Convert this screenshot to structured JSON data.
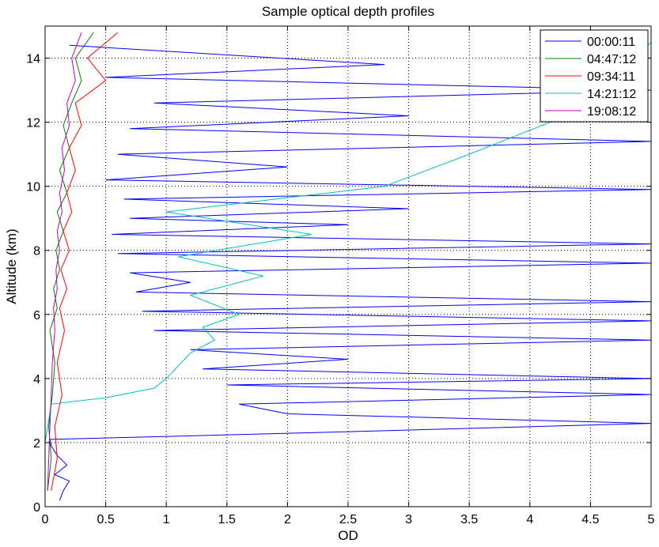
{
  "chart_data": {
    "type": "line",
    "title": "Sample optical depth profiles",
    "xlabel": "OD",
    "ylabel": "Altitude (km)",
    "xlim": [
      0,
      5
    ],
    "ylim": [
      0,
      15
    ],
    "x_ticks": [
      0,
      0.5,
      1,
      1.5,
      2,
      2.5,
      3,
      3.5,
      4,
      4.5,
      5
    ],
    "x_tick_labels": [
      "0",
      "0.5",
      "1",
      "1.5",
      "2",
      "2.5",
      "3",
      "3.5",
      "4",
      "4.5",
      "5"
    ],
    "y_ticks": [
      0,
      2,
      4,
      6,
      8,
      10,
      12,
      14
    ],
    "y_tick_labels": [
      "0",
      "2",
      "4",
      "6",
      "8",
      "10",
      "12",
      "14"
    ],
    "grid": true,
    "grid_style": "dotted",
    "legend_position": "top-right",
    "series": [
      {
        "name": "00:00:11",
        "color": "#0000ff",
        "x": [
          0.12,
          0.15,
          0.2,
          0.08,
          0.18,
          0.1,
          0.05,
          0.04,
          2.1,
          5,
          2.0,
          1.6,
          5,
          1.5,
          5,
          1.3,
          2.5,
          1.2,
          5,
          0.9,
          5,
          0.8,
          5,
          0.75,
          1.2,
          0.7,
          5,
          0.6,
          5,
          0.55,
          2.5,
          0.7,
          3,
          0.65,
          5,
          0.5,
          2,
          0.6,
          5,
          0.7,
          3,
          0.9,
          5,
          0.5,
          2.8,
          0.2
        ],
        "y": [
          0.2,
          0.5,
          0.8,
          1.0,
          1.3,
          1.6,
          1.9,
          2.1,
          2.3,
          2.6,
          2.9,
          3.2,
          3.5,
          3.8,
          4.0,
          4.3,
          4.6,
          4.9,
          5.2,
          5.5,
          5.8,
          6.1,
          6.4,
          6.7,
          7.0,
          7.3,
          7.6,
          7.9,
          8.2,
          8.5,
          8.8,
          9.0,
          9.3,
          9.6,
          9.9,
          10.2,
          10.6,
          11.0,
          11.4,
          11.8,
          12.2,
          12.6,
          13.0,
          13.4,
          13.8,
          14.4
        ]
      },
      {
        "name": "04:47:12",
        "color": "#008000",
        "x": [
          0.02,
          0.05,
          0.03,
          0.06,
          0.08,
          0.04,
          0.1,
          0.07,
          0.12,
          0.09,
          0.15,
          0.1,
          0.18,
          0.12,
          0.2,
          0.15,
          0.22,
          0.3,
          0.25,
          0.4
        ],
        "y": [
          0.5,
          1.5,
          2.5,
          3.5,
          4.5,
          5.5,
          6.2,
          6.8,
          7.4,
          8.0,
          8.6,
          9.2,
          9.8,
          10.5,
          11.2,
          11.9,
          12.6,
          13.3,
          14.0,
          14.8
        ]
      },
      {
        "name": "09:34:11",
        "color": "#ff0000",
        "x": [
          0.05,
          0.1,
          0.08,
          0.14,
          0.1,
          0.16,
          0.12,
          0.18,
          0.13,
          0.2,
          0.15,
          0.22,
          0.18,
          0.25,
          0.2,
          0.3,
          0.25,
          0.5,
          0.35,
          0.6
        ],
        "y": [
          0.5,
          1.5,
          2.5,
          3.5,
          4.5,
          5.5,
          6.2,
          6.8,
          7.4,
          8.0,
          8.6,
          9.2,
          9.8,
          10.5,
          11.2,
          11.9,
          12.6,
          13.3,
          14.0,
          14.8
        ]
      },
      {
        "name": "14:21:12",
        "color": "#00bfbf",
        "x": [
          0,
          0,
          0.05,
          0.5,
          0.9,
          1.0,
          1.1,
          1.2,
          1.4,
          1.3,
          1.6,
          1.2,
          1.8,
          1.1,
          2.2,
          1.0,
          2.8,
          3.5,
          4.5,
          5
        ],
        "y": [
          0.5,
          2.0,
          3.2,
          3.4,
          3.7,
          4.0,
          4.4,
          4.8,
          5.2,
          5.6,
          6.0,
          6.6,
          7.2,
          7.8,
          8.5,
          9.2,
          10.0,
          11.0,
          12.5,
          14.5
        ]
      },
      {
        "name": "19:08:12",
        "color": "#bf00bf",
        "x": [
          0.02,
          0.03,
          0.04,
          0.05,
          0.06,
          0.08,
          0.07,
          0.1,
          0.09,
          0.12,
          0.1,
          0.14,
          0.12,
          0.16,
          0.14,
          0.2,
          0.18,
          0.25,
          0.22,
          0.3
        ],
        "y": [
          0.5,
          1.5,
          2.5,
          3.5,
          4.5,
          5.5,
          6.2,
          6.8,
          7.4,
          8.0,
          8.6,
          9.2,
          9.8,
          10.5,
          11.2,
          11.9,
          12.6,
          13.3,
          14.0,
          14.8
        ]
      }
    ]
  }
}
